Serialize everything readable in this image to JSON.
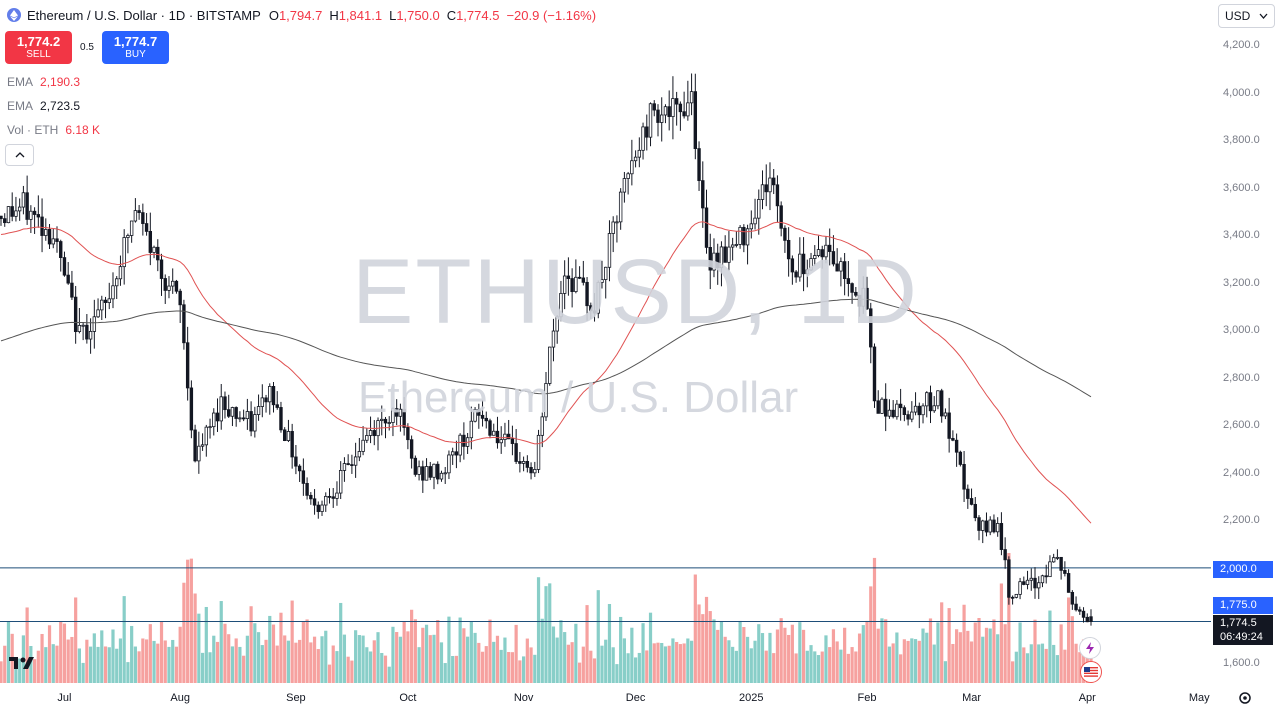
{
  "header": {
    "title": "Ethereum / U.S. Dollar · 1D · BITSTAMP",
    "ohlc": [
      {
        "k": "O",
        "v": "1,794.7"
      },
      {
        "k": "H",
        "v": "1,841.1"
      },
      {
        "k": "L",
        "v": "1,750.0"
      },
      {
        "k": "C",
        "v": "1,774.5"
      },
      {
        "k": "",
        "v": "−20.9 (−1.16%)"
      }
    ]
  },
  "trade": {
    "sell_price": "1,774.2",
    "sell_label": "SELL",
    "spread": "0.5",
    "buy_price": "1,774.7",
    "buy_label": "BUY"
  },
  "indicators": [
    {
      "name": "EMA",
      "value": "2,190.3",
      "color": "#f23645"
    },
    {
      "name": "EMA",
      "value": "2,723.5",
      "color": "#131722"
    },
    {
      "name": "Vol · ETH",
      "value": "6.18 K",
      "color": "#f23645"
    }
  ],
  "currency": "USD",
  "watermark": {
    "symbol": "ETHUSD, 1D",
    "name": "Ethereum / U.S. Dollar"
  },
  "price_tags": {
    "level": "2,000.0",
    "bid": "1,775.0",
    "last": "1,774.5",
    "countdown": "06:49:24"
  },
  "colors": {
    "up": "#26a69a",
    "down": "#ef5350",
    "ema_fast": "#e05252",
    "ema_slow": "#555555",
    "level": "#2962ff"
  },
  "chart_data": {
    "type": "candlestick",
    "symbol": "ETHUSD",
    "interval": "1D",
    "ylim": [
      1550,
      4300
    ],
    "y_ticks": [
      "4,200.0",
      "4,000.0",
      "3,800.0",
      "3,600.0",
      "3,400.0",
      "3,200.0",
      "3,000.0",
      "2,800.0",
      "2,600.0",
      "2,400.0",
      "2,200.0",
      "1,600.0"
    ],
    "x_ticks": [
      "Jul",
      "Aug",
      "Sep",
      "Oct",
      "Nov",
      "Dec",
      "2025",
      "Feb",
      "Mar",
      "Apr",
      "May"
    ],
    "horizontal_lines": [
      2000,
      1774.5
    ],
    "close_series": [
      {
        "date": "2024-06-14",
        "close": 3480
      },
      {
        "date": "2024-06-20",
        "close": 3520
      },
      {
        "date": "2024-06-28",
        "close": 3400
      },
      {
        "date": "2024-07-05",
        "close": 2980
      },
      {
        "date": "2024-07-12",
        "close": 3100
      },
      {
        "date": "2024-07-20",
        "close": 3500
      },
      {
        "date": "2024-07-27",
        "close": 3250
      },
      {
        "date": "2024-08-01",
        "close": 3100
      },
      {
        "date": "2024-08-05",
        "close": 2450
      },
      {
        "date": "2024-08-12",
        "close": 2700
      },
      {
        "date": "2024-08-20",
        "close": 2600
      },
      {
        "date": "2024-08-25",
        "close": 2750
      },
      {
        "date": "2024-09-01",
        "close": 2450
      },
      {
        "date": "2024-09-06",
        "close": 2250
      },
      {
        "date": "2024-09-12",
        "close": 2350
      },
      {
        "date": "2024-09-20",
        "close": 2550
      },
      {
        "date": "2024-09-28",
        "close": 2680
      },
      {
        "date": "2024-10-03",
        "close": 2400
      },
      {
        "date": "2024-10-10",
        "close": 2400
      },
      {
        "date": "2024-10-20",
        "close": 2650
      },
      {
        "date": "2024-10-28",
        "close": 2500
      },
      {
        "date": "2024-11-04",
        "close": 2400
      },
      {
        "date": "2024-11-08",
        "close": 2900
      },
      {
        "date": "2024-11-12",
        "close": 3250
      },
      {
        "date": "2024-11-20",
        "close": 3100
      },
      {
        "date": "2024-11-28",
        "close": 3600
      },
      {
        "date": "2024-12-06",
        "close": 3950
      },
      {
        "date": "2024-12-12",
        "close": 3900
      },
      {
        "date": "2024-12-16",
        "close": 4000
      },
      {
        "date": "2024-12-20",
        "close": 3300
      },
      {
        "date": "2024-12-28",
        "close": 3350
      },
      {
        "date": "2025-01-06",
        "close": 3650
      },
      {
        "date": "2025-01-12",
        "close": 3250
      },
      {
        "date": "2025-01-20",
        "close": 3350
      },
      {
        "date": "2025-01-28",
        "close": 3200
      },
      {
        "date": "2025-02-01",
        "close": 3100
      },
      {
        "date": "2025-02-03",
        "close": 2700
      },
      {
        "date": "2025-02-10",
        "close": 2650
      },
      {
        "date": "2025-02-20",
        "close": 2720
      },
      {
        "date": "2025-02-25",
        "close": 2450
      },
      {
        "date": "2025-03-03",
        "close": 2150
      },
      {
        "date": "2025-03-08",
        "close": 2200
      },
      {
        "date": "2025-03-11",
        "close": 1900
      },
      {
        "date": "2025-03-18",
        "close": 1930
      },
      {
        "date": "2025-03-24",
        "close": 2050
      },
      {
        "date": "2025-03-28",
        "close": 1850
      },
      {
        "date": "2025-04-02",
        "close": 1774.5
      }
    ],
    "series": [
      {
        "name": "EMA",
        "last": 2190.3
      },
      {
        "name": "EMA",
        "last": 2723.5
      }
    ]
  }
}
